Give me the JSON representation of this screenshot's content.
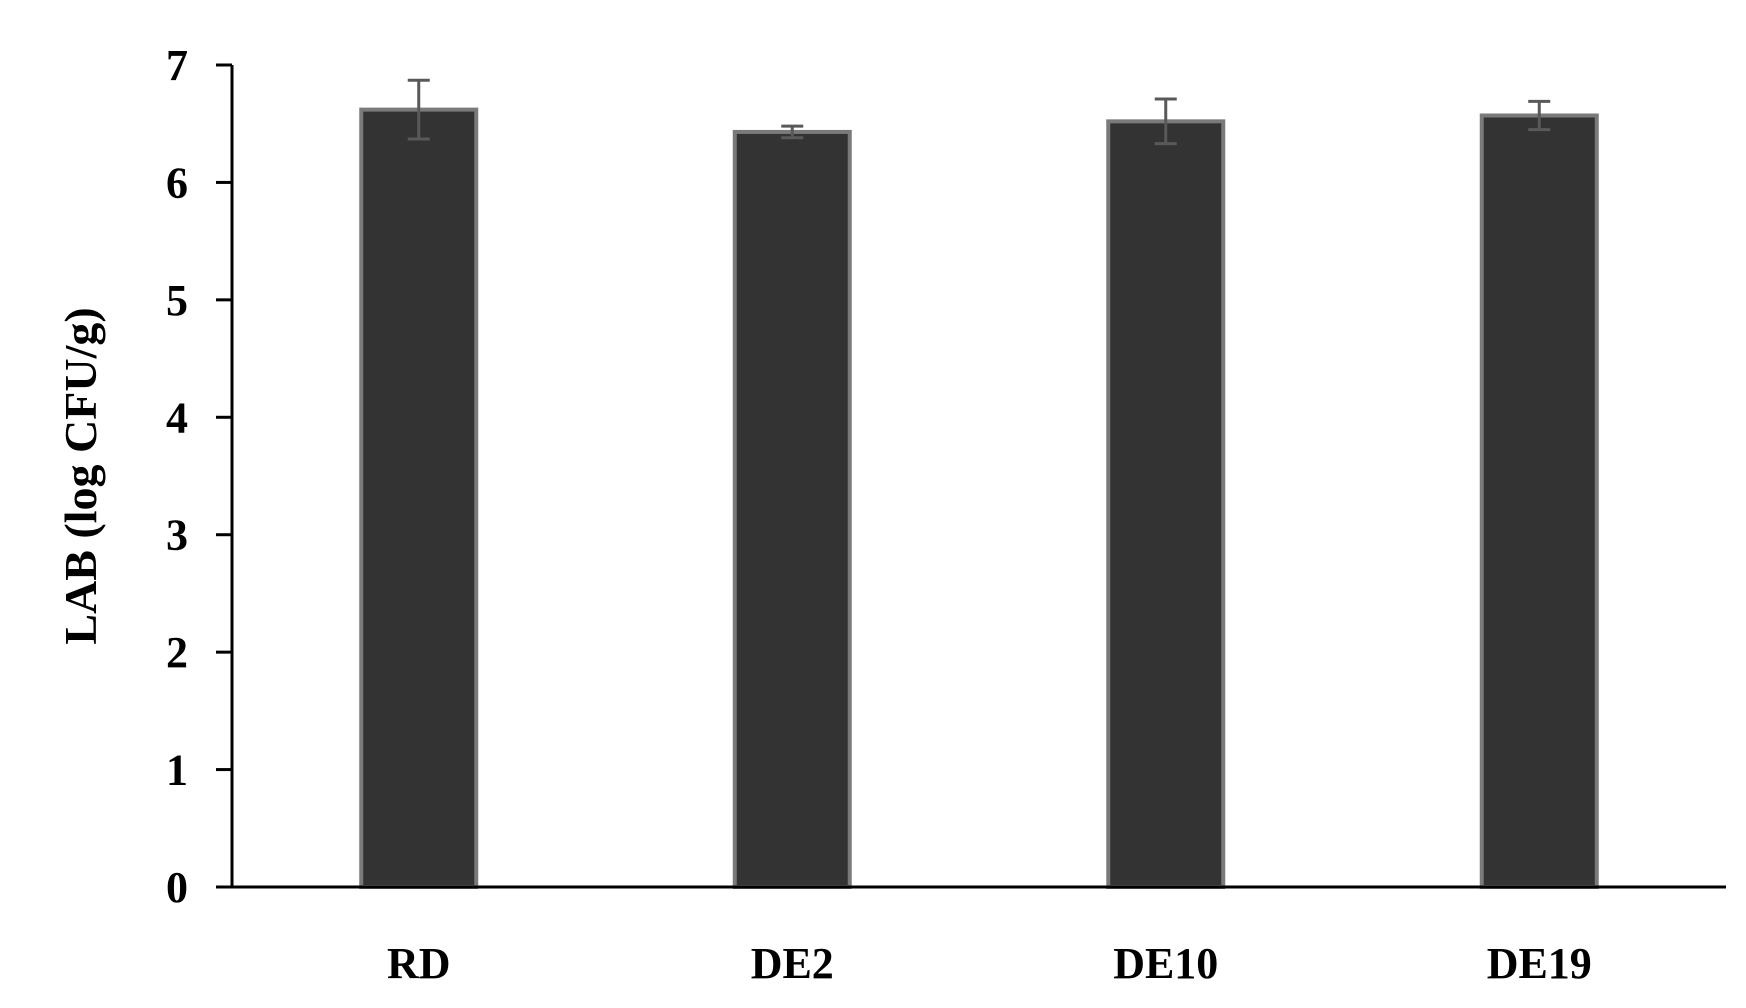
{
  "chart_data": {
    "type": "bar",
    "title": "",
    "xlabel": "",
    "ylabel": "LAB (log CFU/g)",
    "categories": [
      "RD",
      "DE2",
      "DE10",
      "DE19"
    ],
    "values": [
      6.62,
      6.43,
      6.52,
      6.57
    ],
    "errors": [
      0.25,
      0.05,
      0.19,
      0.12
    ],
    "ylim": [
      0,
      7
    ],
    "yticks": [
      0,
      1,
      2,
      3,
      4,
      5,
      6,
      7
    ],
    "grid": false,
    "legend": "none",
    "colors": {
      "bar_fill": "#333333",
      "bar_stroke": "#7a7a7a",
      "error_bar": "#595959",
      "axis": "#000000"
    }
  }
}
